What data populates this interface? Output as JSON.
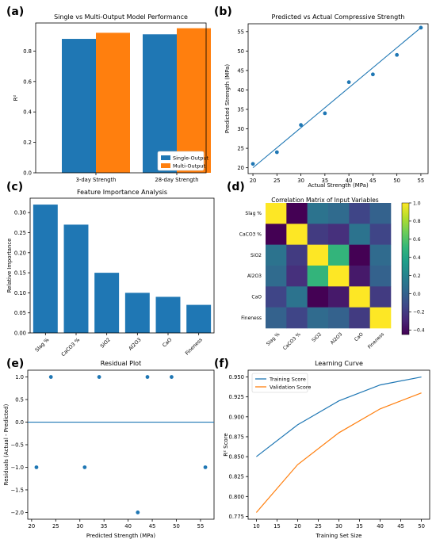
{
  "panel_labels": [
    "(a)",
    "(b)",
    "(c)",
    "(d)",
    "(e)",
    "(f)"
  ],
  "colors": {
    "blue": "#1f77b4",
    "orange": "#ff7f0e"
  },
  "chart_data": [
    {
      "id": "a",
      "type": "bar",
      "title": "Single vs Multi-Output Model Performance",
      "xlabel": "",
      "ylabel": "R²",
      "categories": [
        "3-day Strength",
        "28-day Strength"
      ],
      "series": [
        {
          "name": "Single-Output",
          "values": [
            0.88,
            0.91
          ],
          "color": "#1f77b4"
        },
        {
          "name": "Multi-Output",
          "values": [
            0.92,
            0.95
          ],
          "color": "#ff7f0e"
        }
      ],
      "ylim": [
        0,
        1.0
      ],
      "yticks": [
        0.0,
        0.2,
        0.4,
        0.6,
        0.8
      ],
      "ytick_labels": [
        "0.0",
        "0.2",
        "0.4",
        "0.6",
        "0.8"
      ],
      "legend": "lower-right",
      "grid": false
    },
    {
      "id": "b",
      "type": "scatter",
      "title": "Predicted vs Actual Compressive Strength",
      "xlabel": "Actual Strength (MPa)",
      "ylabel": "Predicted Strength (MPa)",
      "points": [
        [
          20,
          21
        ],
        [
          25,
          24
        ],
        [
          30,
          31
        ],
        [
          35,
          34
        ],
        [
          40,
          42
        ],
        [
          45,
          44
        ],
        [
          50,
          49
        ],
        [
          55,
          56
        ]
      ],
      "fit_line": [
        [
          20,
          20
        ],
        [
          55,
          56
        ]
      ],
      "xlim": [
        19,
        56.5
      ],
      "ylim": [
        18.5,
        57
      ],
      "xticks": [
        20,
        25,
        30,
        35,
        40,
        45,
        50,
        55
      ],
      "yticks": [
        20,
        25,
        30,
        35,
        40,
        45,
        50,
        55
      ],
      "grid": false
    },
    {
      "id": "c",
      "type": "bar",
      "title": "Feature Importance Analysis",
      "xlabel": "",
      "ylabel": "Relative Importance",
      "categories": [
        "Slag %",
        "CaCO3 %",
        "SiO2",
        "Al2O3",
        "CaO",
        "Fineness"
      ],
      "values": [
        0.32,
        0.27,
        0.15,
        0.1,
        0.09,
        0.07
      ],
      "ylim": [
        0,
        0.336
      ],
      "yticks": [
        0.0,
        0.05,
        0.1,
        0.15,
        0.2,
        0.25,
        0.3
      ],
      "ytick_labels": [
        "0.00",
        "0.05",
        "0.10",
        "0.15",
        "0.20",
        "0.25",
        "0.30"
      ],
      "grid": false
    },
    {
      "id": "d",
      "type": "heatmap",
      "title": "Correlation Matrix of Input Variables",
      "labels": [
        "Slag %",
        "CaCO3 %",
        "SiO2",
        "Al2O3",
        "CaO",
        "Fineness"
      ],
      "matrix": [
        [
          1.0,
          -0.45,
          0.1,
          0.05,
          -0.15,
          0.0
        ],
        [
          -0.45,
          1.0,
          -0.2,
          -0.25,
          0.1,
          -0.15
        ],
        [
          0.1,
          -0.2,
          1.0,
          0.5,
          -0.45,
          0.05
        ],
        [
          0.05,
          -0.25,
          0.5,
          1.0,
          -0.35,
          0.0
        ],
        [
          -0.15,
          0.1,
          -0.45,
          -0.35,
          1.0,
          -0.2
        ],
        [
          0.0,
          -0.15,
          0.05,
          0.0,
          -0.2,
          1.0
        ]
      ],
      "vmin": -0.45,
      "vmax": 1.0,
      "colorbar_ticks": [
        1.0,
        0.8,
        0.6,
        0.4,
        0.2,
        0.0,
        -0.2,
        -0.4
      ],
      "colorbar_tick_labels": [
        "1.0",
        "0.8",
        "0.6",
        "0.4",
        "0.2",
        "0.0",
        "−0.2",
        "−0.4"
      ],
      "colormap": "viridis"
    },
    {
      "id": "e",
      "type": "scatter",
      "title": "Residual Plot",
      "xlabel": "Predicted Strength (MPa)",
      "ylabel": "Residuals (Actual - Predicted)",
      "points": [
        [
          21,
          -1
        ],
        [
          24,
          1
        ],
        [
          31,
          -1
        ],
        [
          34,
          1
        ],
        [
          42,
          -2
        ],
        [
          44,
          1
        ],
        [
          49,
          1
        ],
        [
          56,
          -1
        ]
      ],
      "reference_line_y": 0,
      "xlim": [
        19.2,
        57.8
      ],
      "ylim": [
        -2.15,
        1.15
      ],
      "xticks": [
        20,
        25,
        30,
        35,
        40,
        45,
        50,
        55
      ],
      "yticks": [
        1.0,
        0.5,
        0.0,
        -0.5,
        -1.0,
        -1.5,
        -2.0
      ],
      "ytick_labels": [
        "1.0",
        "0.5",
        "0.0",
        "−0.5",
        "−1.0",
        "−1.5",
        "−2.0"
      ],
      "grid": false
    },
    {
      "id": "f",
      "type": "line",
      "title": "Learning Curve",
      "xlabel": "Training Set Size",
      "ylabel": "R² Score",
      "x": [
        10,
        20,
        30,
        40,
        50
      ],
      "series": [
        {
          "name": "Training Score",
          "values": [
            0.85,
            0.89,
            0.92,
            0.94,
            0.95
          ],
          "color": "#1f77b4"
        },
        {
          "name": "Validation Score",
          "values": [
            0.78,
            0.84,
            0.88,
            0.91,
            0.93
          ],
          "color": "#ff7f0e"
        }
      ],
      "xlim": [
        8,
        52
      ],
      "ylim": [
        0.7715,
        0.9585
      ],
      "xticks": [
        10,
        15,
        20,
        25,
        30,
        35,
        40,
        45,
        50
      ],
      "yticks": [
        0.95,
        0.925,
        0.9,
        0.875,
        0.85,
        0.825,
        0.8,
        0.775
      ],
      "ytick_labels": [
        "0.950",
        "0.925",
        "0.900",
        "0.875",
        "0.850",
        "0.825",
        "0.800",
        "0.775"
      ],
      "legend": "upper-left",
      "grid": false
    }
  ]
}
